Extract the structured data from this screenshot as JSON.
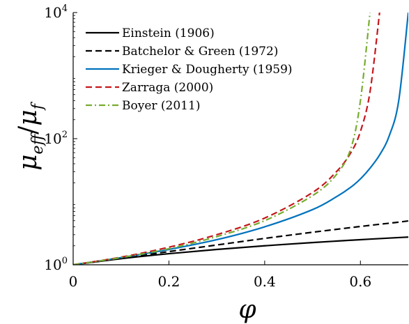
{
  "chart_data": {
    "type": "line",
    "xlabel": "φ",
    "ylabel": "μ",
    "ylabel_sub": "eff",
    "ylabel_den": "μ",
    "ylabel_den_sub": "f",
    "xlim": [
      0,
      0.7
    ],
    "ylim": [
      1,
      10000
    ],
    "yscale": "log",
    "xticks": [
      0,
      0.2,
      0.4,
      0.6
    ],
    "xtick_labels": [
      "0",
      "0.2",
      "0.4",
      "0.6"
    ],
    "yticks": [
      1,
      100,
      10000
    ],
    "ytick_labels": [
      {
        "base": "10",
        "exp": "0"
      },
      {
        "base": "10",
        "exp": "2"
      },
      {
        "base": "10",
        "exp": "4"
      }
    ],
    "grid": false,
    "legend_position": "top-left",
    "x": [
      0,
      0.1,
      0.2,
      0.3,
      0.4,
      0.5,
      0.55,
      0.58,
      0.6,
      0.62,
      0.64,
      0.66,
      0.68,
      0.7
    ],
    "series": [
      {
        "name": "Einstein (1906)",
        "color": "#000000",
        "dash": "solid",
        "values": [
          1.0,
          1.25,
          1.5,
          1.75,
          2.0,
          2.25,
          2.375,
          2.45,
          2.5,
          2.55,
          2.6,
          2.65,
          2.7,
          2.75
        ]
      },
      {
        "name": "Batchelor & Green (1972)",
        "color": "#000000",
        "dash": "dashed",
        "values": [
          1.0,
          1.27,
          1.62,
          2.06,
          2.62,
          3.28,
          3.65,
          3.89,
          4.05,
          4.22,
          4.39,
          4.56,
          4.74,
          4.96
        ]
      },
      {
        "name": "Krieger & Dougherty (1959)",
        "color": "#0072BD",
        "dash": "solid",
        "values": [
          1.0,
          1.3,
          1.75,
          2.5,
          4.0,
          7.5,
          12.0,
          17.0,
          23.0,
          34.0,
          55.0,
          110.0,
          400.0,
          10000.0
        ]
      },
      {
        "name": "Zarraga (2000)",
        "color": "#C4171B",
        "dash": "dashed",
        "values": [
          1.0,
          1.32,
          1.9,
          3.0,
          5.5,
          14.0,
          30.0,
          60.0,
          130.0,
          550.0,
          10000.0,
          null,
          null,
          null
        ]
      },
      {
        "name": "Boyer (2011)",
        "color": "#77AC30",
        "dash": "dashdot",
        "values": [
          1.0,
          1.3,
          1.8,
          2.8,
          5.0,
          12.5,
          27.0,
          70.0,
          400.0,
          10000.0,
          null,
          null,
          null,
          null
        ]
      }
    ]
  }
}
